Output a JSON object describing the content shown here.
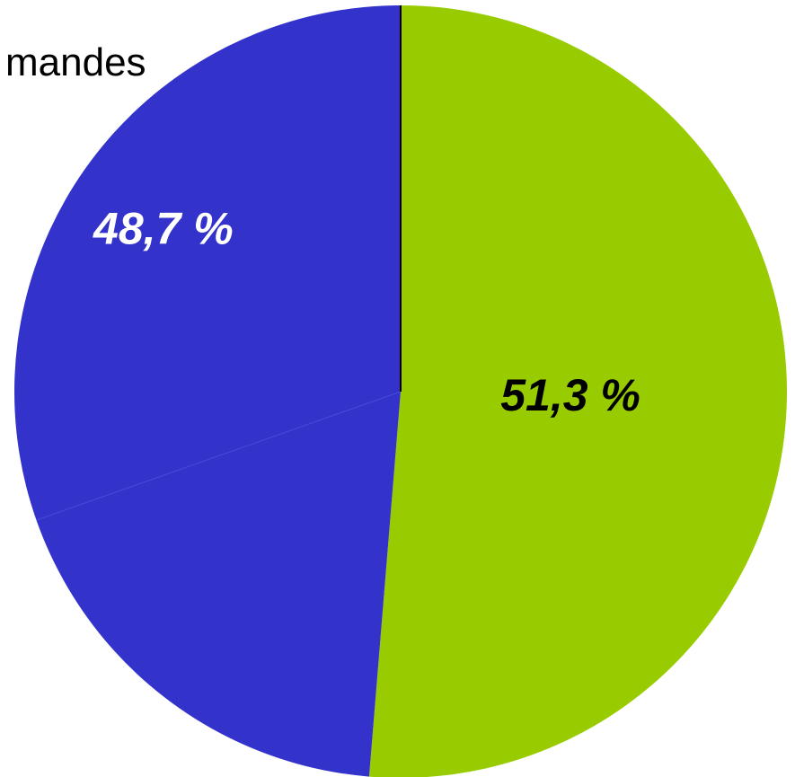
{
  "chart_data": {
    "type": "pie",
    "title": "",
    "slices": [
      {
        "label": "",
        "value": 51.3,
        "display": "51,3 %",
        "color": "#99cc00",
        "label_color": "#000000"
      },
      {
        "label": "",
        "value": 48.7,
        "display": "48,7 %",
        "color": "#3333cc",
        "label_color": "#ffffff"
      }
    ],
    "start_angle_deg": 0,
    "direction": "clockwise",
    "legend": "none",
    "partial_text": "mandes",
    "colors": {
      "background": "#ffffff",
      "divider": "#000000"
    }
  }
}
